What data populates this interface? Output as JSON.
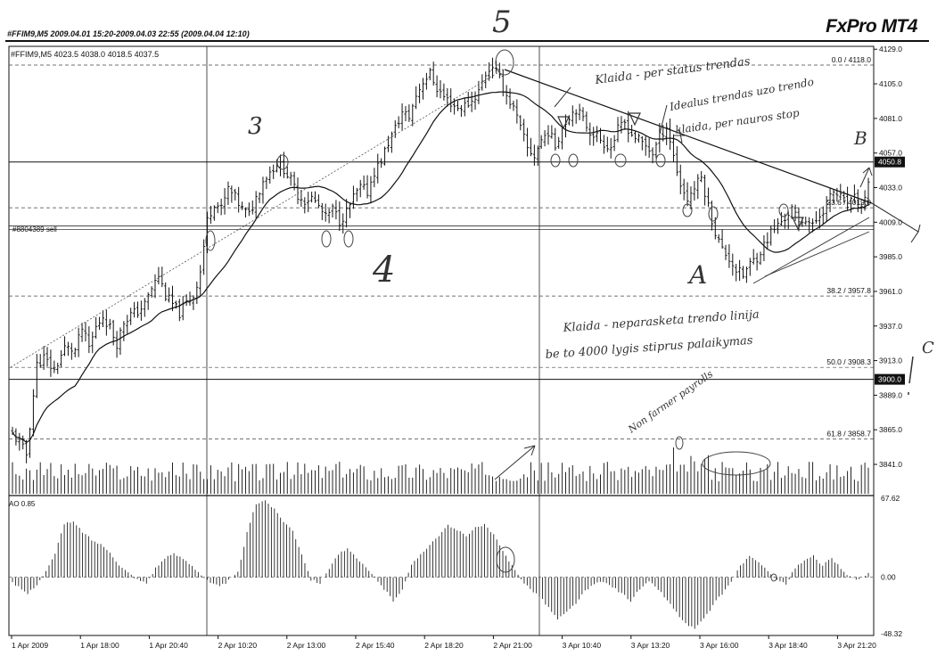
{
  "header": {
    "info": "#FFIM9,M5  2009.04.01 15:20-2009.04.03 22:55 (2009.04.04 12:10)",
    "brand": "FxPro MT4"
  },
  "chart": {
    "symbol_line": "#FFIM9,M5  4023.5 4038.0 4018.5 4037.5",
    "order_label": "#8804389 sell",
    "ao_label": "AO 0.85"
  },
  "chart_data": [
    {
      "type": "candlestick",
      "title": "#FFIM9,M5",
      "ylim": [
        3820,
        4131
      ],
      "y_ticks": [
        "4129.0",
        "4105.0",
        "4081.0",
        "4057.0",
        "4033.0",
        "4009.0",
        "3985.0",
        "3961.0",
        "3937.0",
        "3913.0",
        "3889.0",
        "3865.0",
        "3841.0"
      ],
      "x_ticks": [
        "1 Apr 2009",
        "1 Apr 18:00",
        "1 Apr 20:40",
        "2 Apr 10:20",
        "2 Apr 13:00",
        "2 Apr 15:40",
        "2 Apr 18:20",
        "2 Apr 21:00",
        "3 Apr 10:40",
        "3 Apr 13:20",
        "3 Apr 16:00",
        "3 Apr 18:40",
        "3 Apr 21:20"
      ],
      "fib_levels": [
        {
          "label": "0.0 / 4118.0",
          "value": 4118.0
        },
        {
          "label": "23.6 / 4019.0",
          "value": 4019.0
        },
        {
          "label": "38.2 / 3957.8",
          "value": 3957.8
        },
        {
          "label": "50.0 / 3908.3",
          "value": 3908.3
        },
        {
          "label": "61.8 / 3858.7",
          "value": 3858.7
        }
      ],
      "price_tags": [
        {
          "label": "4050.8",
          "value": 4050.8
        },
        {
          "label": "3900.0",
          "value": 3900.0
        }
      ],
      "close_path_ordinal": [
        [
          0,
          3862
        ],
        [
          2,
          3856
        ],
        [
          4,
          3848
        ],
        [
          5,
          3868
        ],
        [
          7,
          3910
        ],
        [
          9,
          3915
        ],
        [
          12,
          3906
        ],
        [
          15,
          3922
        ],
        [
          18,
          3920
        ],
        [
          20,
          3935
        ],
        [
          22,
          3922
        ],
        [
          24,
          3936
        ],
        [
          26,
          3944
        ],
        [
          28,
          3936
        ],
        [
          30,
          3925
        ],
        [
          32,
          3940
        ],
        [
          34,
          3945
        ],
        [
          36,
          3947
        ],
        [
          38,
          3952
        ],
        [
          40,
          3963
        ],
        [
          42,
          3972
        ],
        [
          44,
          3958
        ],
        [
          46,
          3952
        ],
        [
          48,
          3946
        ],
        [
          50,
          3953
        ],
        [
          52,
          3958
        ],
        [
          54,
          3975
        ],
        [
          56,
          4010
        ],
        [
          58,
          4023
        ],
        [
          60,
          4018
        ],
        [
          62,
          4032
        ],
        [
          64,
          4026
        ],
        [
          66,
          4018
        ],
        [
          68,
          4014
        ],
        [
          70,
          4026
        ],
        [
          72,
          4038
        ],
        [
          74,
          4044
        ],
        [
          76,
          4050
        ],
        [
          78,
          4046
        ],
        [
          80,
          4038
        ],
        [
          82,
          4028
        ],
        [
          84,
          4024
        ],
        [
          86,
          4026
        ],
        [
          88,
          4020
        ],
        [
          90,
          4012
        ],
        [
          92,
          4018
        ],
        [
          94,
          4010
        ],
        [
          96,
          4016
        ],
        [
          98,
          4026
        ],
        [
          100,
          4033
        ],
        [
          102,
          4030
        ],
        [
          104,
          4044
        ],
        [
          106,
          4052
        ],
        [
          108,
          4064
        ],
        [
          110,
          4074
        ],
        [
          112,
          4085
        ],
        [
          114,
          4082
        ],
        [
          116,
          4097
        ],
        [
          118,
          4107
        ],
        [
          120,
          4112
        ],
        [
          122,
          4102
        ],
        [
          124,
          4096
        ],
        [
          126,
          4092
        ],
        [
          128,
          4088
        ],
        [
          130,
          4090
        ],
        [
          132,
          4093
        ],
        [
          134,
          4100
        ],
        [
          136,
          4112
        ],
        [
          138,
          4118
        ],
        [
          140,
          4108
        ],
        [
          142,
          4097
        ],
        [
          144,
          4088
        ],
        [
          146,
          4074
        ],
        [
          148,
          4060
        ],
        [
          150,
          4055
        ],
        [
          152,
          4066
        ],
        [
          154,
          4072
        ],
        [
          156,
          4062
        ],
        [
          158,
          4075
        ],
        [
          160,
          4083
        ],
        [
          162,
          4088
        ],
        [
          164,
          4080
        ],
        [
          166,
          4072
        ],
        [
          168,
          4069
        ],
        [
          170,
          4064
        ],
        [
          172,
          4061
        ],
        [
          174,
          4073
        ],
        [
          176,
          4078
        ],
        [
          178,
          4070
        ],
        [
          180,
          4066
        ],
        [
          182,
          4062
        ],
        [
          184,
          4057
        ],
        [
          186,
          4068
        ],
        [
          188,
          4076
        ],
        [
          190,
          4055
        ],
        [
          192,
          4035
        ],
        [
          194,
          4025
        ],
        [
          196,
          4033
        ],
        [
          198,
          4040
        ],
        [
          200,
          4020
        ],
        [
          202,
          4002
        ],
        [
          204,
          3990
        ],
        [
          206,
          3984
        ],
        [
          208,
          3976
        ],
        [
          210,
          3972
        ],
        [
          212,
          3980
        ],
        [
          214,
          3985
        ],
        [
          216,
          3993
        ],
        [
          218,
          4002
        ],
        [
          220,
          4007
        ],
        [
          222,
          4012
        ],
        [
          224,
          4018
        ],
        [
          226,
          4008
        ],
        [
          228,
          4012
        ],
        [
          230,
          4006
        ],
        [
          232,
          4014
        ],
        [
          234,
          4022
        ],
        [
          236,
          4030
        ],
        [
          238,
          4026
        ],
        [
          240,
          4020
        ],
        [
          242,
          4025
        ],
        [
          244,
          4018
        ],
        [
          246,
          4037
        ]
      ]
    },
    {
      "type": "bar",
      "title": "AO 0.85",
      "ylim": [
        -48.32,
        67.62
      ],
      "y_ticks": [
        "67.62",
        "0.00",
        "-48.32"
      ],
      "envelope_ordinal": [
        [
          0,
          -5
        ],
        [
          5,
          -14
        ],
        [
          8,
          -6
        ],
        [
          11,
          5
        ],
        [
          14,
          20
        ],
        [
          17,
          46
        ],
        [
          20,
          47
        ],
        [
          23,
          39
        ],
        [
          26,
          32
        ],
        [
          29,
          28
        ],
        [
          32,
          22
        ],
        [
          35,
          10
        ],
        [
          38,
          4
        ],
        [
          41,
          -2
        ],
        [
          44,
          -5
        ],
        [
          47,
          8
        ],
        [
          50,
          16
        ],
        [
          53,
          20
        ],
        [
          56,
          16
        ],
        [
          59,
          10
        ],
        [
          62,
          2
        ],
        [
          65,
          -5
        ],
        [
          68,
          -8
        ],
        [
          71,
          -3
        ],
        [
          74,
          4
        ],
        [
          77,
          38
        ],
        [
          80,
          63
        ],
        [
          83,
          66
        ],
        [
          86,
          58
        ],
        [
          89,
          48
        ],
        [
          92,
          40
        ],
        [
          95,
          20
        ],
        [
          98,
          -2
        ],
        [
          101,
          -5
        ],
        [
          104,
          8
        ],
        [
          107,
          20
        ],
        [
          110,
          24
        ],
        [
          113,
          16
        ],
        [
          116,
          8
        ],
        [
          119,
          0
        ],
        [
          122,
          -10
        ],
        [
          125,
          -20
        ],
        [
          128,
          -10
        ],
        [
          131,
          10
        ],
        [
          134,
          20
        ],
        [
          137,
          28
        ],
        [
          140,
          36
        ],
        [
          143,
          44
        ],
        [
          146,
          40
        ],
        [
          149,
          36
        ],
        [
          152,
          42
        ],
        [
          155,
          45
        ],
        [
          158,
          36
        ],
        [
          161,
          22
        ],
        [
          164,
          10
        ],
        [
          166,
          3
        ],
        [
          168,
          -5
        ],
        [
          170,
          -10
        ],
        [
          173,
          -16
        ],
        [
          176,
          -26
        ],
        [
          179,
          -36
        ],
        [
          182,
          -30
        ],
        [
          185,
          -22
        ],
        [
          188,
          -12
        ],
        [
          191,
          -6
        ],
        [
          194,
          -4
        ],
        [
          197,
          -8
        ],
        [
          200,
          -14
        ],
        [
          203,
          -20
        ],
        [
          206,
          -10
        ],
        [
          209,
          -4
        ],
        [
          212,
          -10
        ],
        [
          215,
          -20
        ],
        [
          218,
          -30
        ],
        [
          221,
          -40
        ],
        [
          224,
          -44
        ],
        [
          227,
          -36
        ],
        [
          230,
          -24
        ],
        [
          233,
          -14
        ],
        [
          236,
          -4
        ],
        [
          239,
          10
        ],
        [
          242,
          18
        ],
        [
          245,
          12
        ],
        [
          248,
          6
        ],
        [
          251,
          -2
        ],
        [
          254,
          -6
        ],
        [
          257,
          8
        ],
        [
          260,
          14
        ],
        [
          263,
          18
        ],
        [
          266,
          10
        ],
        [
          269,
          16
        ],
        [
          272,
          8
        ],
        [
          275,
          0
        ],
        [
          278,
          -2
        ],
        [
          281,
          3
        ]
      ]
    }
  ],
  "annotations": [
    {
      "text": "5",
      "kind": "wave-label"
    },
    {
      "text": "3",
      "kind": "wave-label"
    },
    {
      "text": "4",
      "kind": "wave-label"
    },
    {
      "text": "A",
      "kind": "wave-label"
    },
    {
      "text": "B",
      "kind": "wave-label"
    },
    {
      "text": "C",
      "kind": "wave-label"
    },
    {
      "text": "Klaida - per status trendas",
      "kind": "note"
    },
    {
      "text": "Idealus trendas uzo trendo",
      "kind": "note"
    },
    {
      "text": "klaida, per nauros stop",
      "kind": "note"
    },
    {
      "text": "Klaida - neparasketa trendo linija",
      "kind": "note"
    },
    {
      "text": "be to 4000 lygis stiprus palaikymas",
      "kind": "note"
    },
    {
      "text": "Non farmer payrolls",
      "kind": "note"
    }
  ]
}
